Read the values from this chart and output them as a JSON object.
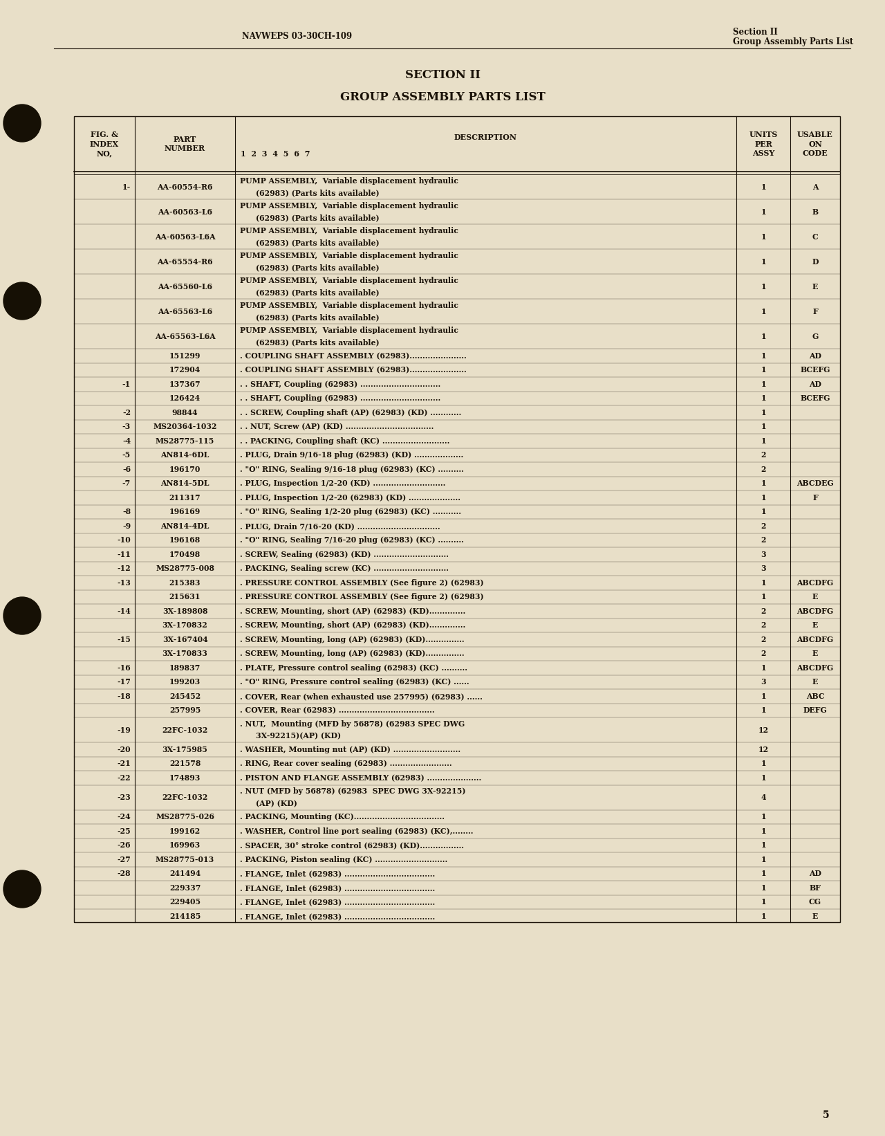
{
  "bg_color": "#e8dfc8",
  "text_color": "#1a1208",
  "page_title_left": "NAVWEPS 03-30CH-109",
  "page_title_right_line1": "Section II",
  "page_title_right_line2": "Group Assembly Parts List",
  "section_heading": "SECTION II",
  "section_subheading": "GROUP ASSEMBLY PARTS LIST",
  "page_number": "5",
  "rows": [
    {
      "fig": "1-",
      "part": "AA-60554-R6",
      "desc": "PUMP ASSEMBLY,  Variable displacement hydraulic\n(62983) (Parts kits available)",
      "units": "1",
      "code": "A",
      "two_line": true
    },
    {
      "fig": "",
      "part": "AA-60563-L6",
      "desc": "PUMP ASSEMBLY,  Variable displacement hydraulic\n(62983) (Parts kits available)",
      "units": "1",
      "code": "B",
      "two_line": true
    },
    {
      "fig": "",
      "part": "AA-60563-L6A",
      "desc": "PUMP ASSEMBLY,  Variable displacement hydraulic\n(62983) (Parts kits available)",
      "units": "1",
      "code": "C",
      "two_line": true
    },
    {
      "fig": "",
      "part": "AA-65554-R6",
      "desc": "PUMP ASSEMBLY,  Variable displacement hydraulic\n(62983) (Parts kits available)",
      "units": "1",
      "code": "D",
      "two_line": true
    },
    {
      "fig": "",
      "part": "AA-65560-L6",
      "desc": "PUMP ASSEMBLY,  Variable displacement hydraulic\n(62983) (Parts kits available)",
      "units": "1",
      "code": "E",
      "two_line": true
    },
    {
      "fig": "",
      "part": "AA-65563-L6",
      "desc": "PUMP ASSEMBLY,  Variable displacement hydraulic\n(62983) (Parts kits available)",
      "units": "1",
      "code": "F",
      "two_line": true
    },
    {
      "fig": "",
      "part": "AA-65563-L6A",
      "desc": "PUMP ASSEMBLY,  Variable displacement hydraulic\n(62983) (Parts kits available)",
      "units": "1",
      "code": "G",
      "two_line": true
    },
    {
      "fig": "",
      "part": "151299",
      "desc": ". COUPLING SHAFT ASSEMBLY (62983)......................",
      "units": "1",
      "code": "AD",
      "two_line": false
    },
    {
      "fig": "",
      "part": "172904",
      "desc": ". COUPLING SHAFT ASSEMBLY (62983)......................",
      "units": "1",
      "code": "BCEFG",
      "two_line": false
    },
    {
      "fig": "-1",
      "part": "137367",
      "desc": ". . SHAFT, Coupling (62983) ...............................",
      "units": "1",
      "code": "AD",
      "two_line": false
    },
    {
      "fig": "",
      "part": "126424",
      "desc": ". . SHAFT, Coupling (62983) ...............................",
      "units": "1",
      "code": "BCEFG",
      "two_line": false
    },
    {
      "fig": "-2",
      "part": "98844",
      "desc": ". . SCREW, Coupling shaft (AP) (62983) (KD) ............",
      "units": "1",
      "code": "",
      "two_line": false
    },
    {
      "fig": "-3",
      "part": "MS20364-1032",
      "desc": ". . NUT, Screw (AP) (KD) ..................................",
      "units": "1",
      "code": "",
      "two_line": false
    },
    {
      "fig": "-4",
      "part": "MS28775-115",
      "desc": ". . PACKING, Coupling shaft (KC) ..........................",
      "units": "1",
      "code": "",
      "two_line": false
    },
    {
      "fig": "-5",
      "part": "AN814-6DL",
      "desc": ". PLUG, Drain 9/16-18 plug (62983) (KD) ...................",
      "units": "2",
      "code": "",
      "two_line": false
    },
    {
      "fig": "-6",
      "part": "196170",
      "desc": ". \"O\" RING, Sealing 9/16-18 plug (62983) (KC) ..........",
      "units": "2",
      "code": "",
      "two_line": false
    },
    {
      "fig": "-7",
      "part": "AN814-5DL",
      "desc": ". PLUG, Inspection 1/2-20 (KD) ............................",
      "units": "1",
      "code": "ABCDEG",
      "two_line": false
    },
    {
      "fig": "",
      "part": "211317",
      "desc": ". PLUG, Inspection 1/2-20 (62983) (KD) ....................",
      "units": "1",
      "code": "F",
      "two_line": false
    },
    {
      "fig": "-8",
      "part": "196169",
      "desc": ". \"O\" RING, Sealing 1/2-20 plug (62983) (KC) ...........",
      "units": "1",
      "code": "",
      "two_line": false
    },
    {
      "fig": "-9",
      "part": "AN814-4DL",
      "desc": ". PLUG, Drain 7/16-20 (KD) ................................",
      "units": "2",
      "code": "",
      "two_line": false
    },
    {
      "fig": "-10",
      "part": "196168",
      "desc": ". \"O\" RING, Sealing 7/16-20 plug (62983) (KC) ..........",
      "units": "2",
      "code": "",
      "two_line": false
    },
    {
      "fig": "-11",
      "part": "170498",
      "desc": ". SCREW, Sealing (62983) (KD) .............................",
      "units": "3",
      "code": "",
      "two_line": false
    },
    {
      "fig": "-12",
      "part": "MS28775-008",
      "desc": ". PACKING, Sealing screw (KC) .............................",
      "units": "3",
      "code": "",
      "two_line": false
    },
    {
      "fig": "-13",
      "part": "215383",
      "desc": ". PRESSURE CONTROL ASSEMBLY (See figure 2) (62983)",
      "units": "1",
      "code": "ABCDFG",
      "two_line": false
    },
    {
      "fig": "",
      "part": "215631",
      "desc": ". PRESSURE CONTROL ASSEMBLY (See figure 2) (62983)",
      "units": "1",
      "code": "E",
      "two_line": false
    },
    {
      "fig": "-14",
      "part": "3X-189808",
      "desc": ". SCREW, Mounting, short (AP) (62983) (KD)..............",
      "units": "2",
      "code": "ABCDFG",
      "two_line": false
    },
    {
      "fig": "",
      "part": "3X-170832",
      "desc": ". SCREW, Mounting, short (AP) (62983) (KD)..............",
      "units": "2",
      "code": "E",
      "two_line": false
    },
    {
      "fig": "-15",
      "part": "3X-167404",
      "desc": ". SCREW, Mounting, long (AP) (62983) (KD)...............",
      "units": "2",
      "code": "ABCDFG",
      "two_line": false
    },
    {
      "fig": "",
      "part": "3X-170833",
      "desc": ". SCREW, Mounting, long (AP) (62983) (KD)...............",
      "units": "2",
      "code": "E",
      "two_line": false
    },
    {
      "fig": "-16",
      "part": "189837",
      "desc": ". PLATE, Pressure control sealing (62983) (KC) ..........",
      "units": "1",
      "code": "ABCDFG",
      "two_line": false
    },
    {
      "fig": "-17",
      "part": "199203",
      "desc": ". \"O\" RING, Pressure control sealing (62983) (KC) ......",
      "units": "3",
      "code": "E",
      "two_line": false
    },
    {
      "fig": "-18",
      "part": "245452",
      "desc": ". COVER, Rear (when exhausted use 257995) (62983) ......",
      "units": "1",
      "code": "ABC",
      "two_line": false
    },
    {
      "fig": "",
      "part": "257995",
      "desc": ". COVER, Rear (62983) .....................................",
      "units": "1",
      "code": "DEFG",
      "two_line": false
    },
    {
      "fig": "-19",
      "part": "22FC-1032",
      "desc": ". NUT,  Mounting (MFD by 56878) (62983 SPEC DWG\n3X-92215)(AP) (KD)",
      "units": "12",
      "code": "",
      "two_line": true
    },
    {
      "fig": "-20",
      "part": "3X-175985",
      "desc": ". WASHER, Mounting nut (AP) (KD) ..........................",
      "units": "12",
      "code": "",
      "two_line": false
    },
    {
      "fig": "-21",
      "part": "221578",
      "desc": ". RING, Rear cover sealing (62983) ........................",
      "units": "1",
      "code": "",
      "two_line": false
    },
    {
      "fig": "-22",
      "part": "174893",
      "desc": ". PISTON AND FLANGE ASSEMBLY (62983) .....................",
      "units": "1",
      "code": "",
      "two_line": false
    },
    {
      "fig": "-23",
      "part": "22FC-1032",
      "desc": ". NUT (MFD by 56878) (62983  SPEC DWG 3X-92215)\n(AP) (KD)",
      "units": "4",
      "code": "",
      "two_line": true
    },
    {
      "fig": "-24",
      "part": "MS28775-026",
      "desc": ". PACKING, Mounting (KC)...................................",
      "units": "1",
      "code": "",
      "two_line": false
    },
    {
      "fig": "-25",
      "part": "199162",
      "desc": ". WASHER, Control line port sealing (62983) (KC),........",
      "units": "1",
      "code": "",
      "two_line": false
    },
    {
      "fig": "-26",
      "part": "169963",
      "desc": ". SPACER, 30° stroke control (62983) (KD).................",
      "units": "1",
      "code": "",
      "two_line": false
    },
    {
      "fig": "-27",
      "part": "MS28775-013",
      "desc": ". PACKING, Piston sealing (KC) ............................",
      "units": "1",
      "code": "",
      "two_line": false
    },
    {
      "fig": "-28",
      "part": "241494",
      "desc": ". FLANGE, Inlet (62983) ...................................",
      "units": "1",
      "code": "AD",
      "two_line": false
    },
    {
      "fig": "",
      "part": "229337",
      "desc": ". FLANGE, Inlet (62983) ...................................",
      "units": "1",
      "code": "BF",
      "two_line": false
    },
    {
      "fig": "",
      "part": "229405",
      "desc": ". FLANGE, Inlet (62983) ...................................",
      "units": "1",
      "code": "CG",
      "two_line": false
    },
    {
      "fig": "",
      "part": "214185",
      "desc": ". FLANGE, Inlet (62983) ...................................",
      "units": "1",
      "code": "E",
      "two_line": false
    }
  ]
}
